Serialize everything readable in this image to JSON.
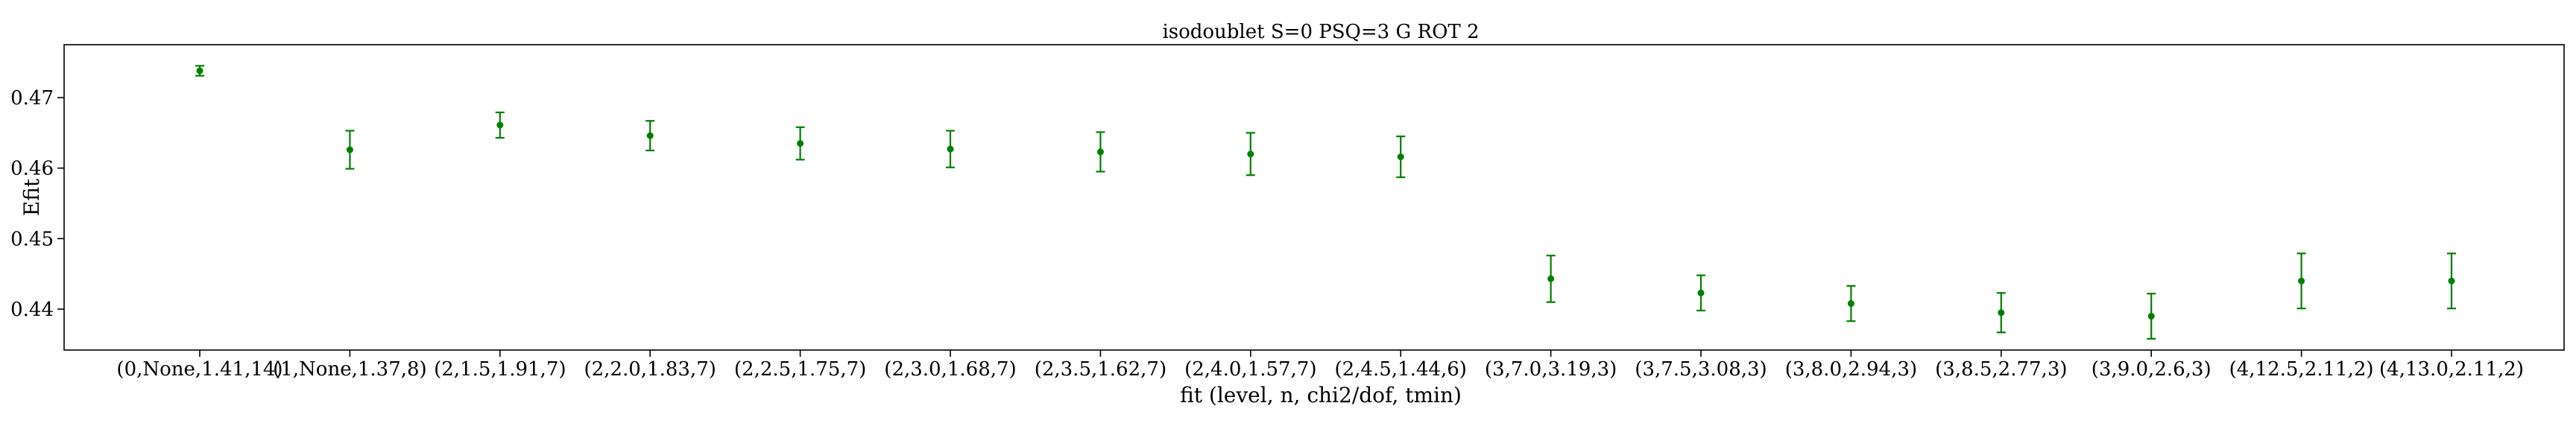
{
  "chart_data": {
    "type": "scatter",
    "title": "isodoublet S=0 PSQ=3 G ROT 2",
    "xlabel": "fit (level, n, chi2/dof, tmin)",
    "ylabel": "Efit",
    "categories": [
      "(0,None,1.41,14)",
      "(1,None,1.37,8)",
      "(2,1.5,1.91,7)",
      "(2,2.0,1.83,7)",
      "(2,2.5,1.75,7)",
      "(2,3.0,1.68,7)",
      "(2,3.5,1.62,7)",
      "(2,4.0,1.57,7)",
      "(2,4.5,1.44,6)",
      "(3,7.0,3.19,3)",
      "(3,7.5,3.08,3)",
      "(3,8.0,2.94,3)",
      "(3,8.5,2.77,3)",
      "(3,9.0,2.6,3)",
      "(4,12.5,2.11,2)",
      "(4,13.0,2.11,2)"
    ],
    "values": [
      0.4738,
      0.4626,
      0.4661,
      0.4646,
      0.4635,
      0.4627,
      0.4623,
      0.462,
      0.4616,
      0.4443,
      0.4423,
      0.4408,
      0.4395,
      0.439,
      0.444,
      0.444
    ],
    "errors": [
      0.0007,
      0.0027,
      0.0018,
      0.0021,
      0.0023,
      0.0026,
      0.0028,
      0.003,
      0.0029,
      0.0033,
      0.0025,
      0.0025,
      0.0028,
      0.0032,
      0.0039,
      0.0039
    ],
    "yticks": [
      0.44,
      0.45,
      0.46,
      0.47
    ],
    "ytick_labels": [
      "0.44",
      "0.45",
      "0.46",
      "0.47"
    ],
    "ylim": [
      0.4342,
      0.4775
    ],
    "grid": false,
    "legend": "none",
    "color": "#008000"
  }
}
